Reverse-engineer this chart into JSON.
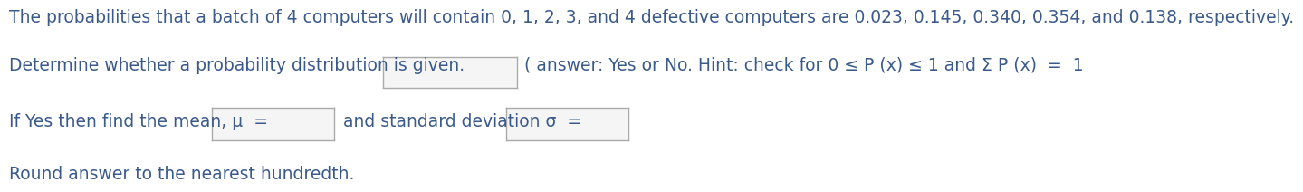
{
  "line1": "The probabilities that a batch of 4 computers will contain 0, 1, 2, 3, and 4 defective computers are 0.023, 0.145, 0.340, 0.354, and 0.138, respectively.",
  "line2_prefix": "Determine whether a probability distribution is given.",
  "line2_hint": "( answer: Yes or No. Hint: check for 0 ≤ P (x) ≤ 1 and Σ P (x)  =  1",
  "line3_prefix": "If Yes then find the mean, μ  =",
  "line3_middle": "and standard deviation σ  =",
  "line4": "Round answer to the nearest hundredth.",
  "text_color": "#3a5a8c",
  "bg_color": "#ffffff",
  "font_size": 13.5,
  "font_size_small": 12.5
}
